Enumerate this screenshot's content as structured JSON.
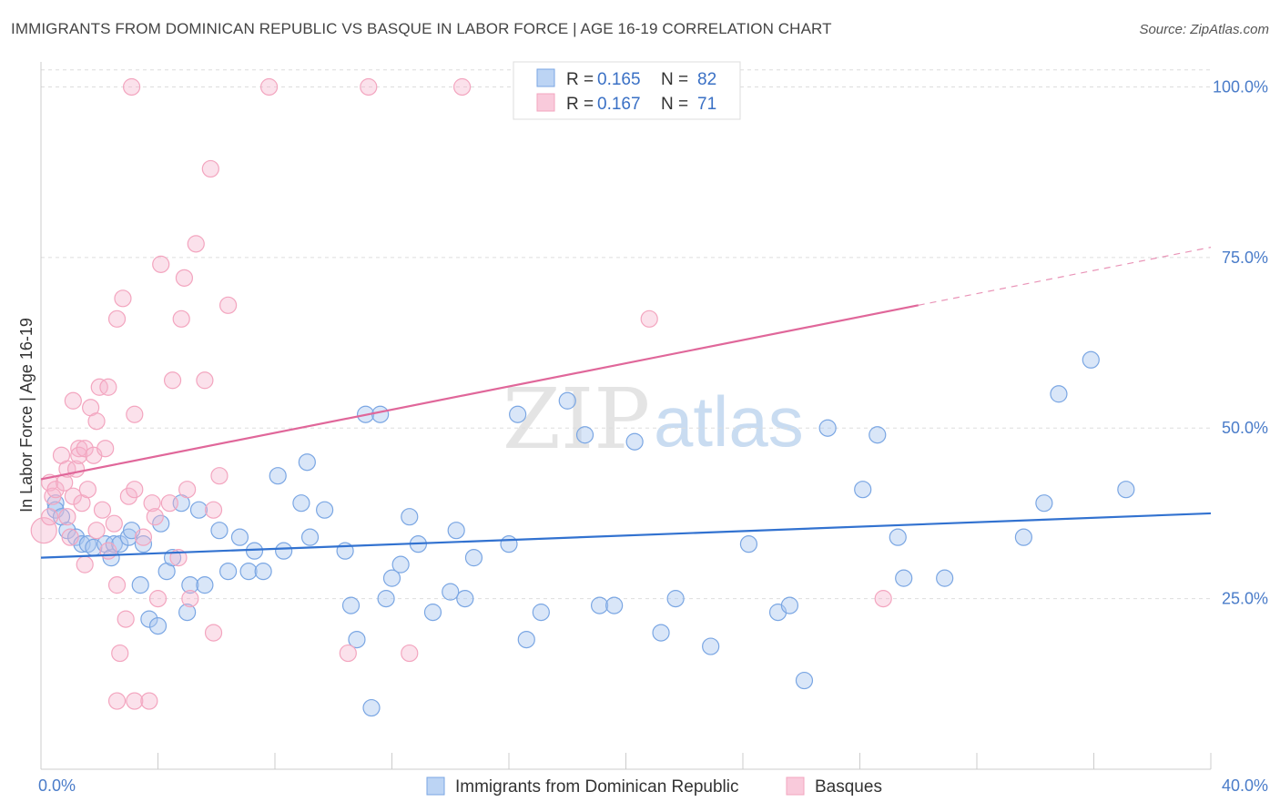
{
  "title": "IMMIGRANTS FROM DOMINICAN REPUBLIC VS BASQUE IN LABOR FORCE | AGE 16-19 CORRELATION CHART",
  "source": "Source: ZipAtlas.com",
  "watermark": {
    "zip": "ZIP",
    "atlas": "atlas"
  },
  "chart_data": {
    "type": "scatter",
    "ylabel": "In Labor Force | Age 16-19",
    "xlabel": "",
    "xlim": [
      0,
      40
    ],
    "ylim": [
      0,
      105
    ],
    "x_tick_labels": [
      "0.0%",
      "40.0%"
    ],
    "y_ticks": [
      25,
      50,
      75,
      100
    ],
    "y_tick_labels": [
      "25.0%",
      "50.0%",
      "75.0%",
      "100.0%"
    ],
    "legend": [
      {
        "r_label": "R =",
        "r": "0.165",
        "n_label": "N =",
        "n": "82"
      },
      {
        "r_label": "R =",
        "r": "0.167",
        "n_label": "N =",
        "n": "71"
      }
    ],
    "series": [
      {
        "name": "Immigrants from Dominican Republic",
        "color": "#7aa6e3",
        "line_color": "#3272d0",
        "trend": {
          "x0": 0,
          "y0": 31.0,
          "x1": 40,
          "y1": 37.5,
          "solid_to": 40
        },
        "points": [
          [
            0.5,
            39
          ],
          [
            0.5,
            38
          ],
          [
            0.7,
            37
          ],
          [
            0.9,
            35
          ],
          [
            1.2,
            34
          ],
          [
            1.4,
            33
          ],
          [
            1.6,
            33
          ],
          [
            1.8,
            32.5
          ],
          [
            2.2,
            33
          ],
          [
            2.4,
            31
          ],
          [
            2.5,
            33
          ],
          [
            2.7,
            33
          ],
          [
            3.0,
            34
          ],
          [
            3.1,
            35
          ],
          [
            3.4,
            27
          ],
          [
            3.5,
            33
          ],
          [
            3.7,
            22
          ],
          [
            4.0,
            21
          ],
          [
            4.1,
            36
          ],
          [
            4.3,
            29
          ],
          [
            4.5,
            31
          ],
          [
            4.8,
            39
          ],
          [
            5.0,
            23
          ],
          [
            5.1,
            27
          ],
          [
            5.4,
            38
          ],
          [
            5.6,
            27
          ],
          [
            6.1,
            35
          ],
          [
            6.4,
            29
          ],
          [
            6.8,
            34
          ],
          [
            7.1,
            29
          ],
          [
            7.3,
            32
          ],
          [
            7.6,
            29
          ],
          [
            8.1,
            43
          ],
          [
            8.3,
            32
          ],
          [
            8.9,
            39
          ],
          [
            9.1,
            45
          ],
          [
            9.2,
            34
          ],
          [
            9.7,
            38
          ],
          [
            10.4,
            32
          ],
          [
            10.6,
            24
          ],
          [
            10.8,
            19
          ],
          [
            11.1,
            52
          ],
          [
            11.3,
            9
          ],
          [
            11.6,
            52
          ],
          [
            11.8,
            25
          ],
          [
            12.0,
            28
          ],
          [
            12.3,
            30
          ],
          [
            12.6,
            37
          ],
          [
            12.9,
            33
          ],
          [
            13.4,
            23
          ],
          [
            14.0,
            26
          ],
          [
            14.2,
            35
          ],
          [
            14.5,
            25
          ],
          [
            14.8,
            31
          ],
          [
            16.0,
            33
          ],
          [
            16.3,
            52
          ],
          [
            16.6,
            19
          ],
          [
            17.1,
            23
          ],
          [
            18.0,
            54
          ],
          [
            18.6,
            49
          ],
          [
            19.1,
            24
          ],
          [
            19.6,
            24
          ],
          [
            20.3,
            48
          ],
          [
            21.2,
            20
          ],
          [
            21.7,
            25
          ],
          [
            22.9,
            18
          ],
          [
            24.2,
            33
          ],
          [
            25.2,
            23
          ],
          [
            25.6,
            24
          ],
          [
            26.1,
            13
          ],
          [
            26.9,
            50
          ],
          [
            28.1,
            41
          ],
          [
            28.6,
            49
          ],
          [
            29.3,
            34
          ],
          [
            29.5,
            28
          ],
          [
            30.9,
            28
          ],
          [
            33.6,
            34
          ],
          [
            34.3,
            39
          ],
          [
            34.8,
            55
          ],
          [
            35.9,
            60
          ],
          [
            37.1,
            41
          ]
        ]
      },
      {
        "name": "Basques",
        "color": "#f3a5bf",
        "line_color": "#e0679a",
        "trend": {
          "x0": 0,
          "y0": 42.5,
          "x1": 40,
          "y1": 76.5,
          "solid_to": 30
        },
        "points": [
          [
            0.1,
            35
          ],
          [
            0.3,
            37
          ],
          [
            0.3,
            42
          ],
          [
            0.4,
            40
          ],
          [
            0.5,
            41
          ],
          [
            0.7,
            46
          ],
          [
            0.8,
            42
          ],
          [
            0.9,
            37
          ],
          [
            0.9,
            44
          ],
          [
            1.0,
            34
          ],
          [
            1.1,
            40
          ],
          [
            1.1,
            54
          ],
          [
            1.2,
            44
          ],
          [
            1.3,
            47
          ],
          [
            1.3,
            46
          ],
          [
            1.4,
            39
          ],
          [
            1.5,
            30
          ],
          [
            1.5,
            47
          ],
          [
            1.6,
            41
          ],
          [
            1.7,
            53
          ],
          [
            1.8,
            46
          ],
          [
            1.9,
            35
          ],
          [
            1.9,
            51
          ],
          [
            2.0,
            56
          ],
          [
            2.1,
            38
          ],
          [
            2.2,
            47
          ],
          [
            2.3,
            32
          ],
          [
            2.3,
            56
          ],
          [
            2.5,
            36
          ],
          [
            2.6,
            27
          ],
          [
            2.6,
            10
          ],
          [
            2.6,
            66
          ],
          [
            2.7,
            17
          ],
          [
            2.8,
            69
          ],
          [
            2.9,
            22
          ],
          [
            3.0,
            40
          ],
          [
            3.1,
            100
          ],
          [
            3.2,
            41
          ],
          [
            3.2,
            52
          ],
          [
            3.2,
            10
          ],
          [
            3.5,
            34
          ],
          [
            3.7,
            10
          ],
          [
            3.8,
            39
          ],
          [
            3.9,
            37
          ],
          [
            4.0,
            25
          ],
          [
            4.1,
            74
          ],
          [
            4.4,
            39
          ],
          [
            4.5,
            57
          ],
          [
            4.7,
            31
          ],
          [
            4.8,
            66
          ],
          [
            4.9,
            72
          ],
          [
            5.0,
            41
          ],
          [
            5.1,
            25
          ],
          [
            5.3,
            77
          ],
          [
            5.6,
            57
          ],
          [
            5.8,
            88
          ],
          [
            5.9,
            20
          ],
          [
            5.9,
            38
          ],
          [
            6.1,
            43
          ],
          [
            6.4,
            68
          ],
          [
            7.8,
            100
          ],
          [
            10.5,
            17
          ],
          [
            11.2,
            100
          ],
          [
            12.6,
            17
          ],
          [
            14.4,
            100
          ],
          [
            20.8,
            66
          ],
          [
            28.8,
            25
          ]
        ]
      }
    ]
  }
}
